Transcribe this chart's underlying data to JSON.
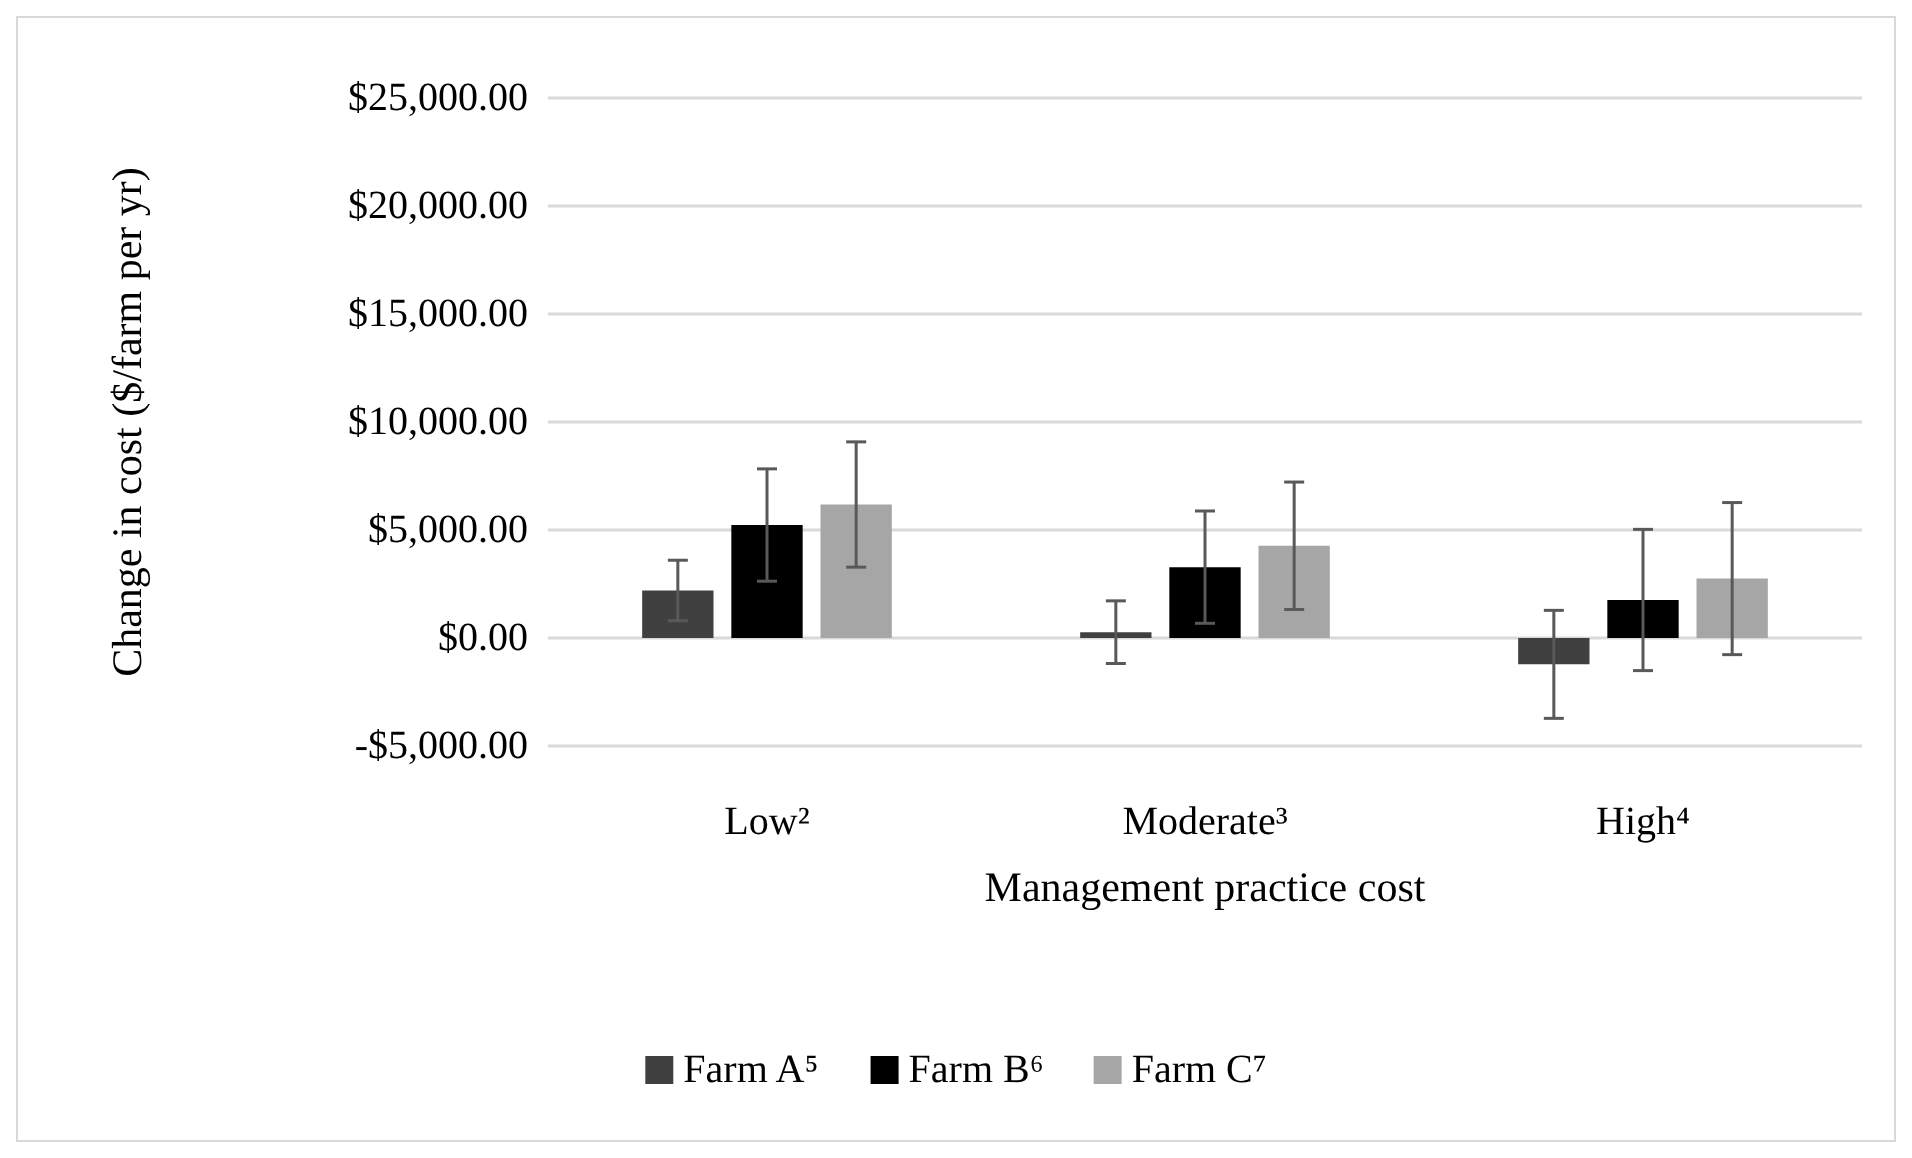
{
  "chart_data": {
    "type": "bar",
    "ylabel": "Change in cost ($/farm per yr)",
    "xlabel": "Management practice cost",
    "categories": [
      "Low²",
      "Moderate³",
      "High⁴"
    ],
    "series": [
      {
        "name": "Farm A⁵",
        "color": "#404040",
        "values": [
          2200,
          270,
          -1220
        ],
        "errors": [
          1400,
          1450,
          2500
        ]
      },
      {
        "name": "Farm B⁶",
        "color": "#000000",
        "values": [
          5230,
          3280,
          1760
        ],
        "errors": [
          2600,
          2600,
          3270
        ]
      },
      {
        "name": "Farm C⁷",
        "color": "#a6a6a6",
        "values": [
          6180,
          4270,
          2750
        ],
        "errors": [
          2900,
          2950,
          3520
        ]
      }
    ],
    "ylim": [
      -5000,
      25000
    ],
    "yticks": [
      {
        "value": -5000,
        "label": "-$5,000.00"
      },
      {
        "value": 0,
        "label": "$0.00"
      },
      {
        "value": 5000,
        "label": "$5,000.00"
      },
      {
        "value": 10000,
        "label": "$10,000.00"
      },
      {
        "value": 15000,
        "label": "$15,000.00"
      },
      {
        "value": 20000,
        "label": "$20,000.00"
      },
      {
        "value": 25000,
        "label": "$25,000.00"
      }
    ],
    "grid": "y",
    "legend": "bottom"
  }
}
